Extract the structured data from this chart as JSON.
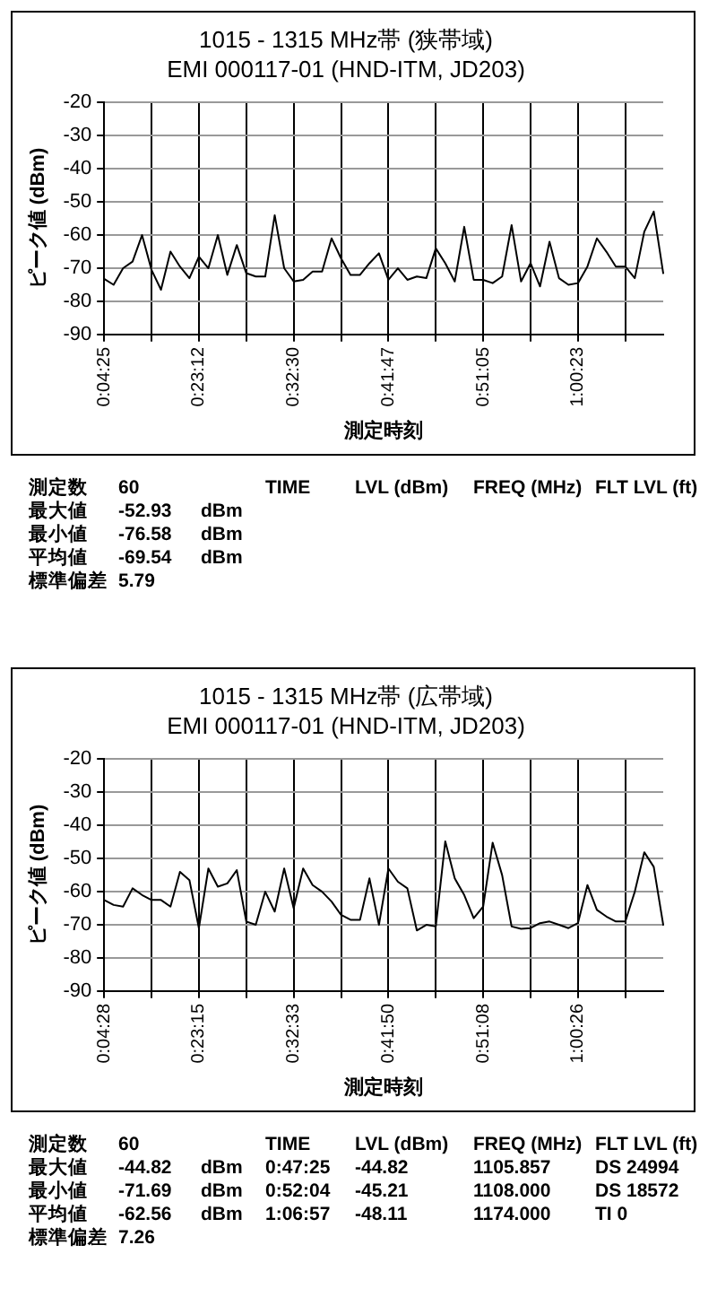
{
  "chart_data": [
    {
      "type": "line",
      "title": "1015 - 1315 MHz帯 (狭帯域)",
      "subtitle": "EMI 000117-01 (HND-ITM, JD203)",
      "xlabel": "測定時刻",
      "ylabel": "ピーク値 (dBm)",
      "categories": [
        "0:04:25",
        null,
        null,
        null,
        null,
        null,
        null,
        null,
        null,
        null,
        "0:23:12",
        null,
        null,
        null,
        null,
        null,
        null,
        null,
        null,
        null,
        "0:32:30",
        null,
        null,
        null,
        null,
        null,
        null,
        null,
        null,
        null,
        "0:41:47",
        null,
        null,
        null,
        null,
        null,
        null,
        null,
        null,
        null,
        "0:51:05",
        null,
        null,
        null,
        null,
        null,
        null,
        null,
        null,
        null,
        "1:00:23",
        null,
        null,
        null,
        null,
        null,
        null,
        null,
        null,
        null
      ],
      "series": [
        {
          "color": "#000000",
          "values": [
            -73.2,
            -75,
            -70,
            -68,
            -60,
            -70.5,
            -76.5,
            -65,
            -69.5,
            -73,
            -66.5,
            -70,
            -60,
            -72,
            -63,
            -71.5,
            -72.5,
            -72.5,
            -54,
            -70,
            -74,
            -73.5,
            -71,
            -71,
            -61,
            -67,
            -72,
            -72,
            -68.5,
            -65.5,
            -73.5,
            -70,
            -73.5,
            -72.5,
            -73,
            -64,
            -68.5,
            -74,
            -57.5,
            -73.5,
            -73.5,
            -74.5,
            -72.5,
            -57,
            -74,
            -68.5,
            -75.5,
            -62,
            -73,
            -75,
            -74.5,
            -69.5,
            -61,
            -65,
            -69.5,
            -69.5,
            -73,
            -59,
            -52.9,
            -71.5
          ]
        }
      ],
      "ylim": [
        -90,
        -20
      ],
      "yticks": [
        -90,
        -80,
        -70,
        -60,
        -50,
        -40,
        -30,
        -20
      ],
      "grid": true,
      "marker": "none",
      "line_style": "solid",
      "annotations": [
        "測定数\t60\t\tTIME\tLVL (dBm)\tFREQ (MHz)\tFLT LVL (ft)",
        "最大値\t-52.93\tdBm",
        "最小値\t-76.58\tdBm",
        "平均値\t-69.54\tdBm",
        "標準偏差\t5.79"
      ]
    },
    {
      "type": "line",
      "title": "1015 - 1315 MHz帯 (広帯域)",
      "subtitle": "EMI 000117-01 (HND-ITM, JD203)",
      "xlabel": "測定時刻",
      "ylabel": "ピーク値 (dBm)",
      "categories": [
        "0:04:28",
        null,
        null,
        null,
        null,
        null,
        null,
        null,
        null,
        null,
        "0:23:15",
        null,
        null,
        null,
        null,
        null,
        null,
        null,
        null,
        null,
        "0:32:33",
        null,
        null,
        null,
        null,
        null,
        null,
        null,
        null,
        null,
        "0:41:50",
        null,
        null,
        null,
        null,
        null,
        null,
        null,
        null,
        null,
        "0:51:08",
        null,
        null,
        null,
        null,
        null,
        null,
        null,
        null,
        null,
        "1:00:26",
        null,
        null,
        null,
        null,
        null,
        null,
        null,
        null,
        null
      ],
      "series": [
        {
          "color": "#000000",
          "values": [
            -62.5,
            -64,
            -64.5,
            -59,
            -61,
            -62.5,
            -62.5,
            -64.5,
            -54,
            -56.5,
            -71,
            -53,
            -58.5,
            -57.5,
            -53.5,
            -69,
            -70,
            -60,
            -66,
            -53,
            -65,
            -53,
            -58,
            -60,
            -63,
            -67,
            -68.5,
            -68.5,
            -56,
            -70,
            -53,
            -57,
            -59,
            -71.7,
            -70,
            -70.5,
            -44.8,
            -56,
            -61,
            -68,
            -64.5,
            -45.2,
            -55,
            -70.5,
            -71.2,
            -71,
            -69.5,
            -69,
            -70,
            -71,
            -69.5,
            -58,
            -65.5,
            -67.5,
            -69,
            -69,
            -60,
            -48.1,
            -52.5,
            -70
          ]
        }
      ],
      "ylim": [
        -90,
        -20
      ],
      "yticks": [
        -90,
        -80,
        -70,
        -60,
        -50,
        -40,
        -30,
        -20
      ],
      "grid": true,
      "marker": "none",
      "line_style": "solid",
      "annotations": [
        "測定数\t60\t\tTIME\tLVL (dBm)\tFREQ (MHz)\tFLT LVL (ft)",
        "最大値\t-44.82\tdBm\t0:47:25\t-44.82\t1105.857\tDS 24994",
        "最小値\t-71.69\tdBm\t0:52:04\t-45.21\t1108.000\tDS 18572",
        "平均値\t-62.56\tdBm\t1:06:57\t-48.11\t1174.000\tTI 0",
        "標準偏差\t7.26"
      ]
    }
  ]
}
